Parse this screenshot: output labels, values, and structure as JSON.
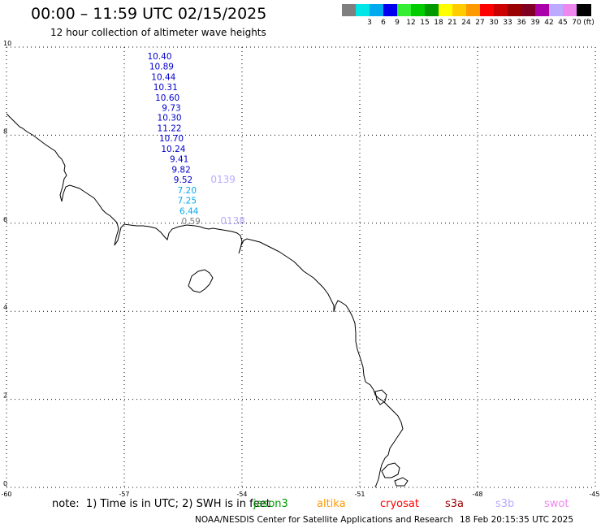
{
  "header": {
    "title": "00:00 – 11:59 UTC 02/15/2025",
    "subtitle": "12 hour collection of altimeter wave heights"
  },
  "color_scale": {
    "bins": [
      {
        "label": "",
        "color": "#7f7f7f"
      },
      {
        "label": "3",
        "color": "#00e5e5"
      },
      {
        "label": "6",
        "color": "#00aaee"
      },
      {
        "label": "9",
        "color": "#0000ee"
      },
      {
        "label": "12",
        "color": "#33ee33"
      },
      {
        "label": "15",
        "color": "#00cc00"
      },
      {
        "label": "18",
        "color": "#009900"
      },
      {
        "label": "21",
        "color": "#ffff00"
      },
      {
        "label": "24",
        "color": "#ffcc00"
      },
      {
        "label": "27",
        "color": "#ff9900"
      },
      {
        "label": "30",
        "color": "#ff0000"
      },
      {
        "label": "33",
        "color": "#cc0000"
      },
      {
        "label": "36",
        "color": "#990000"
      },
      {
        "label": "39",
        "color": "#7f0022"
      },
      {
        "label": "42",
        "color": "#aa00aa"
      },
      {
        "label": "45",
        "color": "#bbaaff"
      },
      {
        "label": "70",
        "color": "#ee88ee"
      },
      {
        "label": "",
        "color": "#000000"
      }
    ],
    "unit": "(ft)"
  },
  "axes": {
    "lon_ticks": [
      {
        "lon": -60,
        "label": "-60"
      },
      {
        "lon": -57,
        "label": "-57"
      },
      {
        "lon": -54,
        "label": "-54"
      },
      {
        "lon": -51,
        "label": "-51"
      },
      {
        "lon": -48,
        "label": "-48"
      },
      {
        "lon": -45,
        "label": "-45"
      }
    ],
    "lat_ticks": [
      {
        "lat": 0,
        "label": "0"
      },
      {
        "lat": 2,
        "label": "2"
      },
      {
        "lat": 4,
        "label": "4"
      },
      {
        "lat": 6,
        "label": "6"
      },
      {
        "lat": 8,
        "label": "8"
      },
      {
        "lat": 10,
        "label": "10"
      }
    ],
    "lon_range": [
      -60,
      -45
    ],
    "lat_range": [
      0,
      10
    ]
  },
  "observations": [
    {
      "lon": -56.1,
      "lat": 9.8,
      "value": "10.40",
      "color": "#0000cc"
    },
    {
      "lon": -56.05,
      "lat": 9.57,
      "value": "10.89",
      "color": "#0000cc"
    },
    {
      "lon": -56.0,
      "lat": 9.33,
      "value": "10.44",
      "color": "#0000cc"
    },
    {
      "lon": -55.95,
      "lat": 9.1,
      "value": "10.31",
      "color": "#0000cc"
    },
    {
      "lon": -55.9,
      "lat": 8.86,
      "value": "10.60",
      "color": "#0000cc"
    },
    {
      "lon": -55.8,
      "lat": 8.63,
      "value": "9.73",
      "color": "#0000cc"
    },
    {
      "lon": -55.85,
      "lat": 8.4,
      "value": "10.30",
      "color": "#0000cc"
    },
    {
      "lon": -55.85,
      "lat": 8.16,
      "value": "11.22",
      "color": "#0000cc"
    },
    {
      "lon": -55.8,
      "lat": 7.93,
      "value": "10.70",
      "color": "#0000cc"
    },
    {
      "lon": -55.75,
      "lat": 7.69,
      "value": "10.24",
      "color": "#0000cc"
    },
    {
      "lon": -55.6,
      "lat": 7.46,
      "value": "9.41",
      "color": "#0000cc"
    },
    {
      "lon": -55.55,
      "lat": 7.22,
      "value": "9.82",
      "color": "#0000cc"
    },
    {
      "lon": -55.5,
      "lat": 6.99,
      "value": "9.52",
      "color": "#0000cc"
    },
    {
      "lon": -55.4,
      "lat": 6.75,
      "value": "7.20",
      "color": "#00aaee"
    },
    {
      "lon": -55.4,
      "lat": 6.52,
      "value": "7.25",
      "color": "#00aaee"
    },
    {
      "lon": -55.35,
      "lat": 6.28,
      "value": "6.44",
      "color": "#00aaee"
    },
    {
      "lon": -55.3,
      "lat": 6.05,
      "value": "0.59",
      "color": "#7f7f7f"
    }
  ],
  "track_labels": [
    {
      "lon": -54.8,
      "lat": 6.99,
      "text": "0139",
      "color": "#bbaaff"
    },
    {
      "lon": -54.55,
      "lat": 6.05,
      "text": "0138",
      "color": "#bbaaff"
    }
  ],
  "footer": {
    "note": "note:  1) Time is in UTC; 2) SWH is in feet",
    "legend": [
      {
        "name": "jason3",
        "color": "#009900"
      },
      {
        "name": "altika",
        "color": "#ff9900"
      },
      {
        "name": "cryosat",
        "color": "#ff0000"
      },
      {
        "name": "s3a",
        "color": "#990000"
      },
      {
        "name": "s3b",
        "color": "#bbaaff"
      },
      {
        "name": "swot",
        "color": "#ee88ee"
      }
    ],
    "credit": "NOAA/NESDIS Center for Satellite Applications and Research",
    "timestamp": "18 Feb 20:15:35 UTC 2025"
  }
}
